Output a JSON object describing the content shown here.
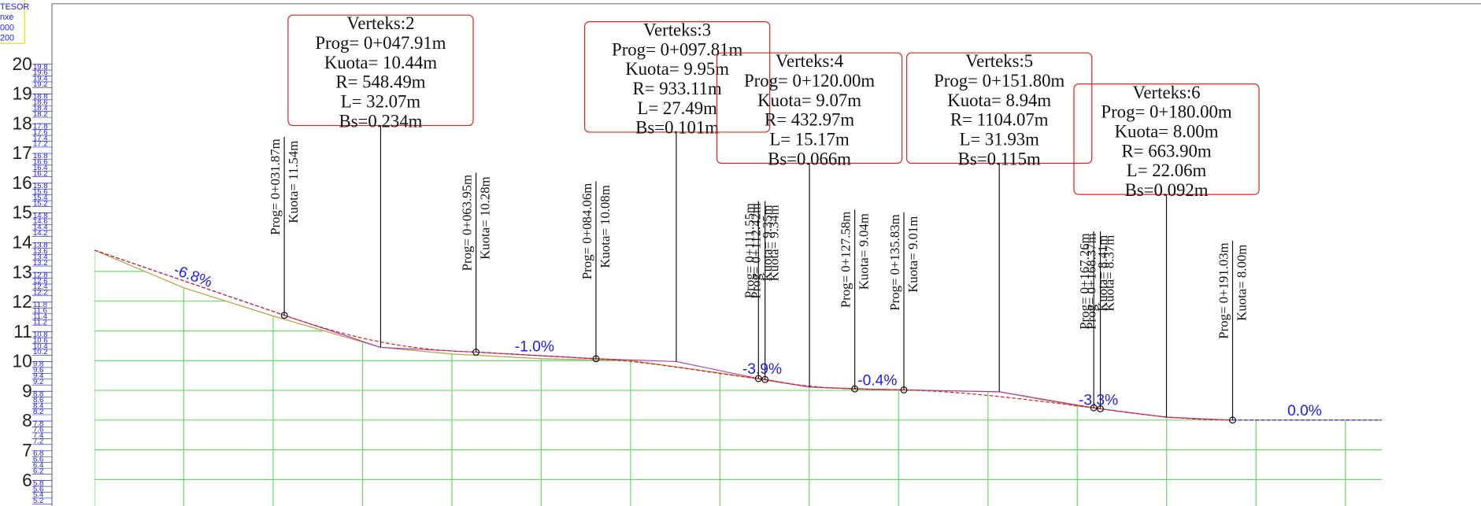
{
  "legend_box": [
    "TESOR",
    "nxe",
    "000",
    "200"
  ],
  "axis": {
    "major": [
      "20",
      "19",
      "18",
      "17",
      "16",
      "15",
      "14",
      "13",
      "12",
      "11",
      "10",
      "9",
      "8",
      "7",
      "6"
    ],
    "minor": [
      [
        "19.8",
        "19.6",
        "19.4",
        "19.2"
      ],
      [
        "18.8",
        "18.6",
        "18.4",
        "18.2"
      ],
      [
        "17.8",
        "17.6",
        "17.4",
        "17.2"
      ],
      [
        "16.8",
        "16.6",
        "16.4",
        "16.2"
      ],
      [
        "15.8",
        "15.6",
        "15.4",
        "15.2"
      ],
      [
        "14.8",
        "14.6",
        "14.4",
        "14.2"
      ],
      [
        "13.8",
        "13.6",
        "13.4",
        "13.2"
      ],
      [
        "12.8",
        "12.6",
        "12.4",
        "12.2"
      ],
      [
        "11.8",
        "11.6",
        "11.4",
        "11.2"
      ],
      [
        "10.8",
        "10.6",
        "10.4",
        "10.2"
      ],
      [
        "9.8",
        "9.6",
        "9.4",
        "9.2"
      ],
      [
        "8.8",
        "8.6",
        "8.4",
        "8.2"
      ],
      [
        "7.8",
        "7.6",
        "7.4",
        "7.2"
      ],
      [
        "6.8",
        "6.6",
        "6.4",
        "6.2"
      ],
      [
        "5.8",
        "5.6",
        "5.4",
        "5.2"
      ]
    ]
  },
  "vertices": [
    {
      "name": "Verteks:2",
      "prog": "Prog= 0+047.91m",
      "kuota": "Kuota= 10.44m",
      "r": "R= 548.49m",
      "l": "L= 32.07m",
      "bs": "Bs=0.234m"
    },
    {
      "name": "Verteks:3",
      "prog": "Prog= 0+097.81m",
      "kuota": "Kuota= 9.95m",
      "r": "R= 933.11m",
      "l": "L= 27.49m",
      "bs": "Bs=0.101m"
    },
    {
      "name": "Verteks:4",
      "prog": "Prog= 0+120.00m",
      "kuota": "Kuota= 9.07m",
      "r": "R= 432.97m",
      "l": "L= 15.17m",
      "bs": "Bs=0.066m"
    },
    {
      "name": "Verteks:5",
      "prog": "Prog= 0+151.80m",
      "kuota": "Kuota= 8.94m",
      "r": "R= 1104.07m",
      "l": "L= 31.93m",
      "bs": "Bs=0.115m"
    },
    {
      "name": "Verteks:6",
      "prog": "Prog= 0+180.00m",
      "kuota": "Kuota= 8.00m",
      "r": "R= 663.90m",
      "l": "L= 22.06m",
      "bs": "Bs=0.092m"
    }
  ],
  "stations": [
    {
      "prog": "Prog= 0+031.87m",
      "kuota": "Kuota= 11.54m"
    },
    {
      "prog": "Prog= 0+063.95m",
      "kuota": "Kuota= 10.28m"
    },
    {
      "prog": "Prog= 0+084.06m",
      "kuota": "Kuota= 10.08m"
    },
    {
      "prog": "Prog= 0+111.55m",
      "kuota": "Kuota= 9.35m"
    },
    {
      "prog": "Prog= 0+112.42m",
      "kuota": "Kuota= 9.34m"
    },
    {
      "prog": "Prog= 0+127.58m",
      "kuota": "Kuota= 9.04m"
    },
    {
      "prog": "Prog= 0+135.83m",
      "kuota": "Kuota= 9.01m"
    },
    {
      "prog": "Prog= 0+167.26m",
      "kuota": "Kuota= 8.41m"
    },
    {
      "prog": "Prog= 0+168.37m",
      "kuota": "Kuota= 8.37m"
    },
    {
      "prog": "Prog= 0+191.03m",
      "kuota": "Kuota= 8.00m"
    }
  ],
  "grades": [
    "-6.8%",
    "-1.0%",
    "-3.9%",
    "-0.4%",
    "-3.3%",
    "0.0%"
  ]
}
